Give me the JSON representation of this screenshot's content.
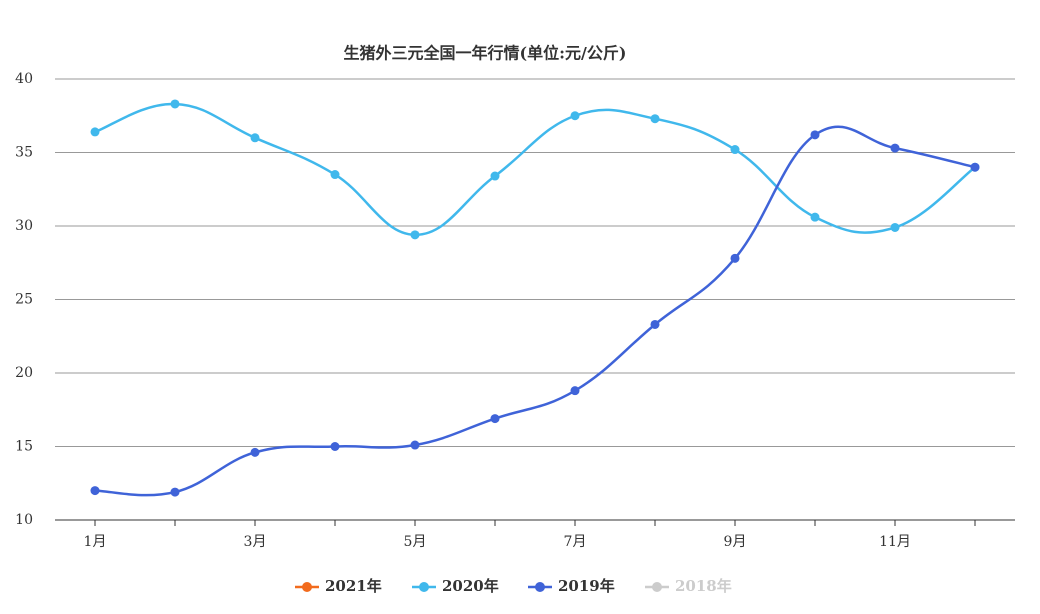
{
  "chart_data": {
    "type": "line",
    "title": "生猪外三元全国一年行情(单位:元/公斤)",
    "categories": [
      "1月",
      null,
      "3月",
      null,
      "5月",
      null,
      "7月",
      null,
      "9月",
      null,
      "11月",
      null
    ],
    "series": [
      {
        "name": "2021年",
        "color": "#f26b1d",
        "values": [
          null,
          null,
          null,
          null,
          null,
          null,
          null,
          null,
          null,
          null,
          null,
          null
        ]
      },
      {
        "name": "2020年",
        "color": "#40b8ec",
        "values": [
          36.4,
          38.3,
          36.0,
          33.5,
          29.4,
          33.4,
          37.5,
          37.3,
          35.2,
          30.6,
          29.9,
          34.0
        ]
      },
      {
        "name": "2019年",
        "color": "#3f63d8",
        "values": [
          12.0,
          11.9,
          14.6,
          15.0,
          15.1,
          16.9,
          18.8,
          23.3,
          27.8,
          36.2,
          35.3,
          34.0
        ]
      },
      {
        "name": "2018年",
        "color": "#cccccc",
        "values": [
          null,
          null,
          null,
          null,
          null,
          null,
          null,
          null,
          null,
          null,
          null,
          null
        ]
      }
    ],
    "ylim": [
      10,
      40
    ],
    "yticks": [
      10,
      15,
      20,
      25,
      30,
      35,
      40
    ],
    "grid": true,
    "legend": "bottom"
  }
}
